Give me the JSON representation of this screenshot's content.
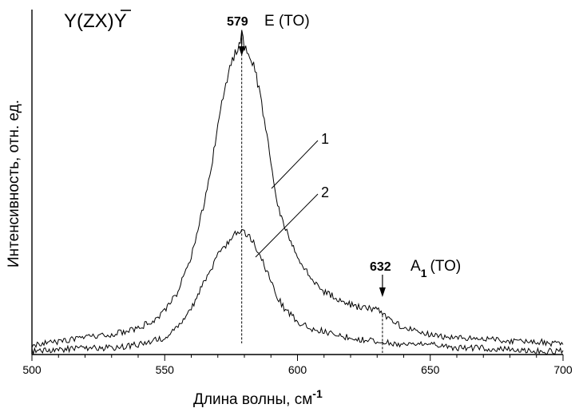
{
  "chart_data": {
    "type": "line",
    "title": "Y(ZX)Y",
    "xlabel": "Длина волны, см",
    "xlabel_superscript": "-1",
    "ylabel": "Интенсивность, отн. ед.",
    "xlim": [
      500,
      700
    ],
    "ylim": [
      0,
      1
    ],
    "x_ticks": [
      500,
      550,
      600,
      650,
      700
    ],
    "x_tick_labels": [
      "500",
      "550",
      "600",
      "650",
      "700"
    ],
    "grid": false,
    "series": [
      {
        "name": "1",
        "x": [
          500,
          510,
          520,
          530,
          540,
          545,
          550,
          555,
          560,
          565,
          568,
          570,
          572,
          574,
          576,
          578,
          579,
          580,
          582,
          584,
          586,
          588,
          590,
          592,
          595,
          600,
          605,
          610,
          615,
          620,
          625,
          630,
          632,
          635,
          640,
          650,
          660,
          670,
          680,
          690,
          700
        ],
        "y": [
          0.03,
          0.04,
          0.05,
          0.06,
          0.08,
          0.1,
          0.13,
          0.19,
          0.3,
          0.46,
          0.59,
          0.69,
          0.78,
          0.85,
          0.9,
          0.94,
          0.97,
          0.93,
          0.91,
          0.86,
          0.78,
          0.69,
          0.58,
          0.47,
          0.39,
          0.3,
          0.23,
          0.19,
          0.17,
          0.15,
          0.14,
          0.14,
          0.12,
          0.11,
          0.08,
          0.06,
          0.05,
          0.05,
          0.04,
          0.04,
          0.03
        ]
      },
      {
        "name": "2",
        "x": [
          500,
          510,
          520,
          530,
          540,
          550,
          555,
          560,
          565,
          570,
          572,
          574,
          576,
          578,
          579,
          580,
          582,
          584,
          586,
          588,
          590,
          592,
          595,
          600,
          605,
          610,
          620,
          630,
          640,
          650,
          660,
          670,
          680,
          690,
          700
        ],
        "y": [
          0.01,
          0.015,
          0.02,
          0.02,
          0.03,
          0.05,
          0.08,
          0.14,
          0.22,
          0.3,
          0.32,
          0.34,
          0.36,
          0.37,
          0.37,
          0.37,
          0.36,
          0.33,
          0.3,
          0.26,
          0.22,
          0.18,
          0.14,
          0.1,
          0.08,
          0.07,
          0.05,
          0.04,
          0.03,
          0.03,
          0.02,
          0.02,
          0.015,
          0.01,
          0.01
        ]
      }
    ],
    "annotations": [
      {
        "value": "579",
        "label": "E (TO)",
        "x": 579
      },
      {
        "value": "632",
        "label_main": "A",
        "label_sub": "1",
        "label_tail": "(TO)",
        "x": 632
      }
    ]
  }
}
